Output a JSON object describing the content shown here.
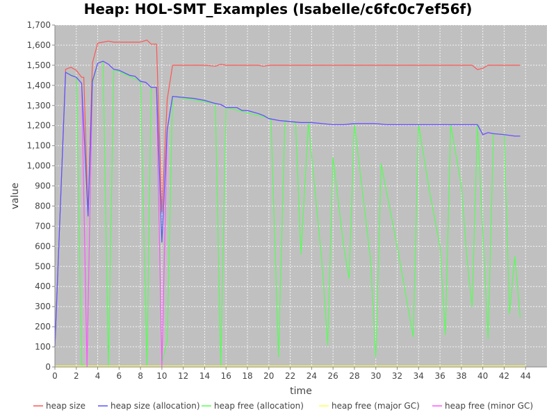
{
  "chart_data": {
    "type": "line",
    "title": "Heap: HOL-SMT_Examples (Isabelle/c6fc0c7ef56f)",
    "xlabel": "time",
    "ylabel": "value",
    "xlim": [
      0,
      46
    ],
    "ylim": [
      0,
      1700
    ],
    "xticks": [
      0,
      2,
      4,
      6,
      8,
      10,
      12,
      14,
      16,
      18,
      20,
      22,
      24,
      26,
      28,
      30,
      32,
      34,
      36,
      38,
      40,
      42,
      44
    ],
    "yticks": [
      0,
      100,
      200,
      300,
      400,
      500,
      600,
      700,
      800,
      900,
      1000,
      1100,
      1200,
      1300,
      1400,
      1500,
      1600,
      1700
    ],
    "ytick_labels": [
      "0",
      "100",
      "200",
      "300",
      "400",
      "500",
      "600",
      "700",
      "800",
      "900",
      "1,000",
      "1,100",
      "1,200",
      "1,300",
      "1,400",
      "1,500",
      "1,600",
      "1,700"
    ],
    "grid": true,
    "legend_position": "bottom",
    "background_color": "#c0c0c0",
    "series": [
      {
        "name": "heap size",
        "color": "#ff5555",
        "points": [
          [
            0,
            100
          ],
          [
            1,
            1480
          ],
          [
            1.5,
            1490
          ],
          [
            2,
            1475
          ],
          [
            2.5,
            1440
          ],
          [
            2.7,
            1440
          ],
          [
            3.1,
            750
          ],
          [
            3.5,
            1510
          ],
          [
            4,
            1610
          ],
          [
            4.5,
            1615
          ],
          [
            5,
            1620
          ],
          [
            5.5,
            1615
          ],
          [
            6,
            1615
          ],
          [
            7,
            1615
          ],
          [
            8,
            1615
          ],
          [
            8.6,
            1625
          ],
          [
            9,
            1605
          ],
          [
            9.5,
            1605
          ],
          [
            10,
            770
          ],
          [
            10.5,
            1330
          ],
          [
            11,
            1500
          ],
          [
            12,
            1500
          ],
          [
            13,
            1500
          ],
          [
            14,
            1500
          ],
          [
            15,
            1495
          ],
          [
            15.5,
            1505
          ],
          [
            16,
            1500
          ],
          [
            17,
            1500
          ],
          [
            18,
            1500
          ],
          [
            19,
            1500
          ],
          [
            19.5,
            1495
          ],
          [
            20,
            1500
          ],
          [
            21,
            1500
          ],
          [
            22,
            1500
          ],
          [
            23,
            1500
          ],
          [
            24,
            1500
          ],
          [
            25,
            1500
          ],
          [
            26,
            1500
          ],
          [
            27,
            1500
          ],
          [
            28,
            1500
          ],
          [
            29,
            1500
          ],
          [
            30,
            1500
          ],
          [
            31,
            1500
          ],
          [
            32,
            1500
          ],
          [
            33,
            1500
          ],
          [
            34,
            1500
          ],
          [
            35,
            1500
          ],
          [
            36,
            1500
          ],
          [
            37,
            1500
          ],
          [
            38,
            1500
          ],
          [
            39,
            1500
          ],
          [
            39.5,
            1478
          ],
          [
            40,
            1485
          ],
          [
            40.5,
            1500
          ],
          [
            41,
            1500
          ],
          [
            42,
            1500
          ],
          [
            43,
            1500
          ],
          [
            43.5,
            1500
          ]
        ]
      },
      {
        "name": "heap size (allocation)",
        "color": "#5555ff",
        "points": [
          [
            0,
            100
          ],
          [
            1,
            1465
          ],
          [
            1.5,
            1450
          ],
          [
            2,
            1440
          ],
          [
            2.5,
            1410
          ],
          [
            3.1,
            750
          ],
          [
            3.5,
            1420
          ],
          [
            4,
            1510
          ],
          [
            4.5,
            1520
          ],
          [
            5,
            1505
          ],
          [
            5.5,
            1480
          ],
          [
            6,
            1475
          ],
          [
            7,
            1450
          ],
          [
            7.5,
            1445
          ],
          [
            8,
            1420
          ],
          [
            8.5,
            1415
          ],
          [
            9,
            1390
          ],
          [
            9.5,
            1390
          ],
          [
            10,
            620
          ],
          [
            10.5,
            1180
          ],
          [
            11,
            1345
          ],
          [
            12,
            1340
          ],
          [
            13,
            1335
          ],
          [
            14,
            1325
          ],
          [
            15,
            1310
          ],
          [
            15.5,
            1305
          ],
          [
            16,
            1290
          ],
          [
            17,
            1290
          ],
          [
            17.5,
            1275
          ],
          [
            18,
            1275
          ],
          [
            19,
            1260
          ],
          [
            19.5,
            1250
          ],
          [
            20,
            1235
          ],
          [
            21,
            1225
          ],
          [
            22,
            1220
          ],
          [
            23,
            1215
          ],
          [
            24,
            1215
          ],
          [
            25,
            1210
          ],
          [
            26,
            1205
          ],
          [
            27,
            1205
          ],
          [
            28,
            1210
          ],
          [
            29,
            1210
          ],
          [
            30,
            1210
          ],
          [
            31,
            1205
          ],
          [
            32,
            1205
          ],
          [
            33,
            1205
          ],
          [
            34,
            1205
          ],
          [
            35,
            1205
          ],
          [
            36,
            1205
          ],
          [
            37,
            1205
          ],
          [
            38,
            1205
          ],
          [
            39,
            1205
          ],
          [
            39.5,
            1205
          ],
          [
            40,
            1155
          ],
          [
            40.5,
            1165
          ],
          [
            41,
            1160
          ],
          [
            42,
            1155
          ],
          [
            43,
            1148
          ],
          [
            43.5,
            1148
          ]
        ]
      },
      {
        "name": "heap free (allocation)",
        "color": "#55ff55",
        "points": [
          [
            0,
            100
          ],
          [
            1,
            1465
          ],
          [
            2,
            1440
          ],
          [
            2.5,
            10
          ],
          [
            3,
            0
          ],
          [
            3.5,
            1410
          ],
          [
            4,
            1510
          ],
          [
            4.5,
            1520
          ],
          [
            5,
            0
          ],
          [
            5.5,
            1480
          ],
          [
            8,
            1420
          ],
          [
            8.6,
            0
          ],
          [
            9,
            1390
          ],
          [
            9.5,
            1390
          ],
          [
            10,
            20
          ],
          [
            10.5,
            130
          ],
          [
            11,
            1345
          ],
          [
            15,
            1310
          ],
          [
            15.5,
            0
          ],
          [
            16,
            1290
          ],
          [
            20.2,
            1235
          ],
          [
            20.9,
            50
          ],
          [
            21.5,
            1225
          ],
          [
            22.5,
            1215
          ],
          [
            23,
            560
          ],
          [
            23.7,
            1215
          ],
          [
            25,
            500
          ],
          [
            25.5,
            110
          ],
          [
            26,
            1040
          ],
          [
            27,
            600
          ],
          [
            27.5,
            440
          ],
          [
            28,
            1205
          ],
          [
            29.5,
            540
          ],
          [
            30,
            50
          ],
          [
            30.5,
            1010
          ],
          [
            32,
            600
          ],
          [
            33,
            300
          ],
          [
            33.5,
            150
          ],
          [
            34,
            1205
          ],
          [
            35,
            880
          ],
          [
            36,
            600
          ],
          [
            36.5,
            160
          ],
          [
            37,
            1205
          ],
          [
            38,
            900
          ],
          [
            38.5,
            550
          ],
          [
            39,
            300
          ],
          [
            39.5,
            1205
          ],
          [
            40.5,
            140
          ],
          [
            41,
            1160
          ],
          [
            42,
            1155
          ],
          [
            42.5,
            265
          ],
          [
            43,
            550
          ],
          [
            43.5,
            245
          ]
        ]
      },
      {
        "name": "heap free (major GC)",
        "color": "#ffff55",
        "points": [
          [
            0,
            5
          ],
          [
            44,
            5
          ]
        ]
      },
      {
        "name": "heap free (minor GC)",
        "color": "#ff55ff",
        "points": [
          [
            0,
            100
          ],
          [
            1,
            1465
          ],
          [
            1.5,
            1450
          ],
          [
            2,
            1440
          ],
          [
            2.5,
            1410
          ],
          [
            3,
            0
          ],
          [
            3.5,
            1420
          ],
          [
            4,
            1510
          ],
          [
            4.5,
            1520
          ],
          [
            5,
            1505
          ],
          [
            5.5,
            1480
          ],
          [
            6,
            1475
          ],
          [
            7,
            1450
          ],
          [
            7.5,
            1445
          ],
          [
            8,
            1420
          ],
          [
            8.5,
            1415
          ],
          [
            9,
            1390
          ],
          [
            9.5,
            1390
          ],
          [
            10,
            0
          ],
          [
            10.5,
            1180
          ],
          [
            11,
            1345
          ],
          [
            12,
            1340
          ],
          [
            13,
            1335
          ],
          [
            14,
            1325
          ],
          [
            15,
            1310
          ],
          [
            15.5,
            1305
          ],
          [
            16,
            1290
          ],
          [
            17,
            1290
          ],
          [
            17.5,
            1275
          ],
          [
            18,
            1275
          ],
          [
            19,
            1260
          ],
          [
            19.5,
            1250
          ],
          [
            20,
            1235
          ],
          [
            21,
            1225
          ],
          [
            22,
            1220
          ],
          [
            23,
            1215
          ],
          [
            24,
            1215
          ],
          [
            25,
            1210
          ],
          [
            26,
            1205
          ],
          [
            27,
            1205
          ],
          [
            28,
            1210
          ],
          [
            29,
            1210
          ],
          [
            30,
            1210
          ],
          [
            31,
            1205
          ],
          [
            32,
            1205
          ],
          [
            33,
            1205
          ],
          [
            34,
            1205
          ],
          [
            35,
            1205
          ],
          [
            36,
            1205
          ],
          [
            37,
            1205
          ],
          [
            38,
            1205
          ],
          [
            39,
            1205
          ],
          [
            39.5,
            1205
          ],
          [
            40,
            1155
          ],
          [
            40.5,
            1165
          ],
          [
            41,
            1160
          ],
          [
            42,
            1155
          ],
          [
            43,
            1148
          ],
          [
            43.5,
            1148
          ]
        ]
      }
    ]
  }
}
